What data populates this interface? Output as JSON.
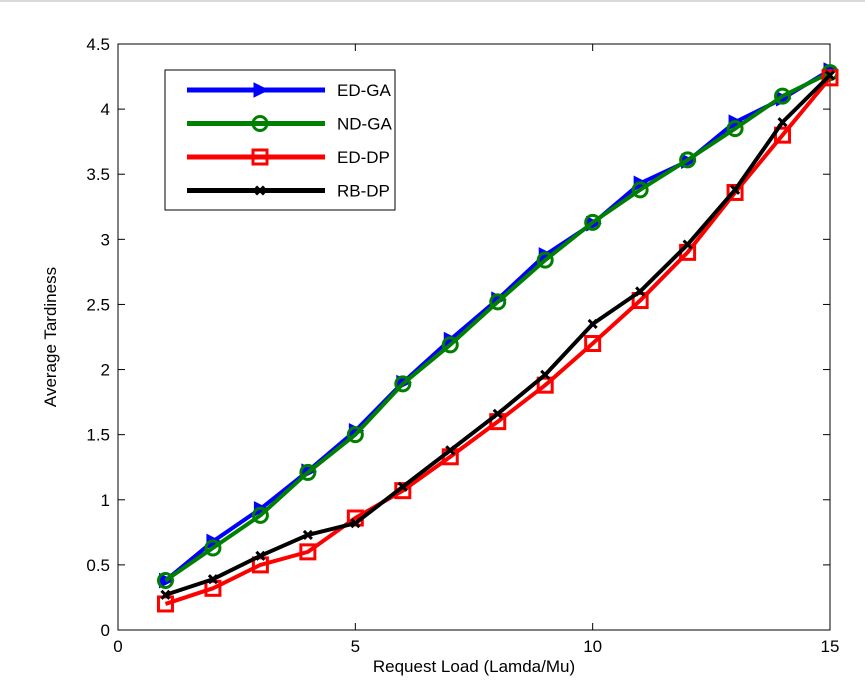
{
  "chart_data": {
    "type": "line",
    "title": "",
    "xlabel": "Request Load (Lamda/Mu)",
    "ylabel": "Average Tardiness",
    "xlim": [
      0,
      15
    ],
    "ylim": [
      0,
      4.5
    ],
    "xticks": [
      0,
      5,
      10,
      15
    ],
    "yticks": [
      0,
      0.5,
      1,
      1.5,
      2,
      2.5,
      3,
      3.5,
      4,
      4.5
    ],
    "ytick_labels": [
      "0",
      "0.5",
      "1",
      "1.5",
      "2",
      "2.5",
      "3",
      "3.5",
      "4",
      "4.5"
    ],
    "grid": false,
    "legend_position": "top-left",
    "x": [
      1,
      2,
      3,
      4,
      5,
      6,
      7,
      8,
      9,
      10,
      11,
      12,
      13,
      14,
      15
    ],
    "series": [
      {
        "name": "ED-GA",
        "color": "#0000ff",
        "marker": "triangle-right",
        "values": [
          0.38,
          0.68,
          0.93,
          1.22,
          1.53,
          1.9,
          2.23,
          2.54,
          2.88,
          3.12,
          3.43,
          3.6,
          3.9,
          4.08,
          4.3
        ]
      },
      {
        "name": "ND-GA",
        "color": "#008000",
        "marker": "circle",
        "values": [
          0.38,
          0.63,
          0.88,
          1.21,
          1.5,
          1.89,
          2.19,
          2.52,
          2.84,
          3.13,
          3.38,
          3.61,
          3.85,
          4.1,
          4.28
        ]
      },
      {
        "name": "ED-DP",
        "color": "#ff0000",
        "marker": "square",
        "values": [
          0.2,
          0.32,
          0.5,
          0.6,
          0.86,
          1.07,
          1.33,
          1.6,
          1.88,
          2.2,
          2.53,
          2.9,
          3.36,
          3.8,
          4.24
        ]
      },
      {
        "name": "RB-DP",
        "color": "#000000",
        "marker": "x",
        "values": [
          0.27,
          0.39,
          0.57,
          0.73,
          0.82,
          1.1,
          1.38,
          1.66,
          1.96,
          2.35,
          2.6,
          2.96,
          3.38,
          3.9,
          4.26
        ]
      }
    ]
  }
}
